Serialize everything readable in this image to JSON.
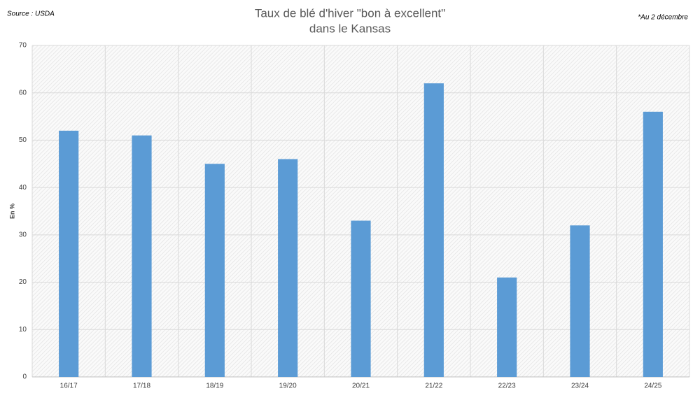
{
  "chart_data": {
    "type": "bar",
    "title": [
      "Taux de blé d'hiver \"bon à excellent\"",
      "dans le Kansas"
    ],
    "source": "Source : USDA",
    "note": "*Au 2 décembre",
    "y_label": "En %",
    "categories": [
      "16/17",
      "17/18",
      "18/19",
      "19/20",
      "20/21",
      "21/22",
      "22/23",
      "23/24",
      "24/25"
    ],
    "values": [
      52,
      51,
      45,
      46,
      33,
      62,
      21,
      32,
      56
    ],
    "color": "#5b9bd5",
    "ylim": [
      0,
      70
    ],
    "yticks": [
      0,
      10,
      20,
      30,
      40,
      50,
      60,
      70
    ],
    "grid": true
  }
}
